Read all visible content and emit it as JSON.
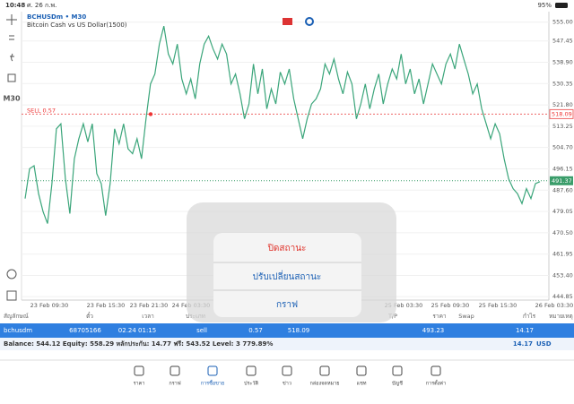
{
  "status_bar": {
    "time": "10:48",
    "date": "ศ. 26 ก.พ.",
    "battery": "95%"
  },
  "chart": {
    "symbol": "BCHUSDm • M30",
    "description": "Bitcoin Cash vs US Dollar(1500)",
    "timeframe": "M30",
    "sell_label": "SELL 0.57",
    "sell_price": 518.09,
    "bid_price": 491.37,
    "ylim": [
      443.5,
      559.2
    ],
    "yticks": [
      {
        "value": 555,
        "label": "555.00"
      },
      547.45,
      {
        "value": 538.9,
        "label": "538.90"
      },
      530.35,
      {
        "value": 521.8,
        "label": "521.80"
      },
      513.25,
      {
        "value": 504.7,
        "label": "504.70"
      },
      496.15,
      {
        "value": 487.6,
        "label": "487.60"
      },
      479.05,
      {
        "value": 470.5,
        "label": "470.50"
      },
      461.95,
      {
        "value": 453.4,
        "label": "453.40"
      },
      444.85
    ],
    "time_labels": [
      "23 Feb 09:30",
      "23 Feb 15:30",
      "23 Feb 21:30",
      "24 Feb 03:30",
      "25 Feb 03:30",
      "25 Feb 09:30",
      "25 Feb 15:30",
      "26 Feb 03:30"
    ],
    "prices": [
      484.2,
      496.2,
      497.4,
      486.2,
      479.0,
      474.2,
      490.2,
      512.2,
      514.2,
      492.2,
      478.2,
      500.2,
      508.2,
      514.2,
      507.0,
      514.2,
      494.2,
      490.2,
      477.4,
      490.2,
      512.2,
      506.2,
      514.2,
      504.2,
      502.2,
      508.2,
      500.2,
      516.2,
      530.2,
      534.2,
      546.2,
      553.4,
      542.2,
      538.2,
      546.2,
      532.2,
      526.2,
      532.2,
      524.2,
      538.2,
      546.2,
      549.4,
      544.2,
      540.2,
      546.2,
      542.2,
      530.2,
      534.2,
      526.2,
      516.2,
      522.2,
      538.2,
      526.2,
      536.2,
      520.2,
      528.2,
      522.2,
      535.0,
      530.2,
      536.2,
      524.2,
      516.2,
      508.2,
      516.2,
      522.2,
      524.2,
      528.2,
      538.2,
      534.2,
      540.2,
      532.2,
      526.2,
      535.0,
      530.2,
      516.2,
      522.2,
      530.2,
      520.2,
      528.2,
      534.2,
      522.2,
      530.2,
      536.2,
      532.2,
      542.2,
      530.2,
      536.2,
      526.2,
      532.2,
      522.2,
      530.2,
      538.2,
      534.2,
      530.2,
      538.2,
      542.2,
      536.2,
      546.2,
      540.2,
      534.2,
      526.2,
      530.2,
      520.2,
      514.2,
      508.2,
      514.2,
      510.2,
      500.2,
      492.2,
      488.2,
      486.2,
      482.2,
      488.2,
      484.2,
      490.2,
      491.0
    ]
  },
  "popup": {
    "items": [
      "ปิดสถานะ",
      "ปรับเปลี่ยนสถานะ",
      "กราฟ"
    ]
  },
  "table": {
    "headers": [
      "สัญลักษณ์",
      "ตั๋ว",
      "เวลา",
      "ประเภท",
      "T/P",
      "ราคา",
      "Swap",
      "กำไร",
      "หมายเหตุ"
    ],
    "row": [
      "bchusdm",
      "68705166",
      "02.24 01:15",
      "sell",
      "0.57",
      "518.09",
      "493.23",
      "14.17"
    ],
    "summary": "Balance: 544.12 Equity: 558.29 หลักประกัน: 14.77 ฟรี: 543.52 Level: 3 779.89%",
    "profit": "14.17",
    "currency": "USD"
  },
  "tabs": [
    "ราคา",
    "กราฟ",
    "การซื้อขาย",
    "ประวัติ",
    "ข่าว",
    "กล่องจดหมาย",
    "แชท",
    "บัญชี",
    "การตั้งค่า"
  ]
}
